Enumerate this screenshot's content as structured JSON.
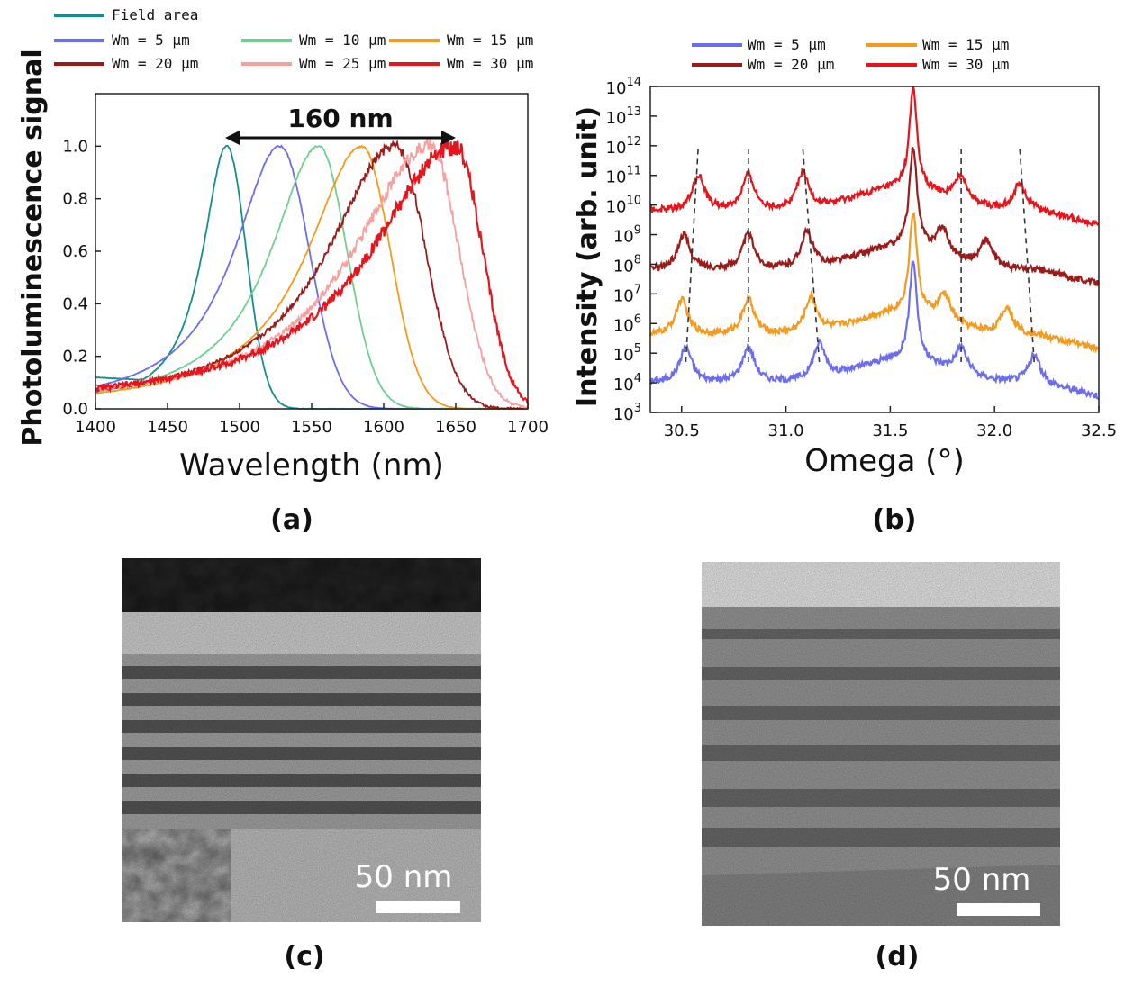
{
  "colors": {
    "field": "#138d8d",
    "wm5": "#6b6cf0",
    "wm10": "#6fcf8f",
    "wm15": "#f59a1c",
    "wm20": "#9b1b1b",
    "wm25": "#f7a0a0",
    "wm30": "#e8141c"
  },
  "chart_data": [
    {
      "type": "line",
      "panel": "(a)",
      "title": "",
      "xlabel": "Wavelength (nm)",
      "ylabel": "Photoluminescence signal",
      "xlim": [
        1400,
        1700
      ],
      "ylim": [
        0,
        1.2
      ],
      "xticks": [
        "1400",
        "1450",
        "1500",
        "1550",
        "1600",
        "1650",
        "1700"
      ],
      "yticks": [
        "0.0",
        "0.2",
        "0.4",
        "0.6",
        "0.8",
        "1.0"
      ],
      "annotation": "160 nm",
      "annotation_range": [
        1490,
        1650
      ],
      "legend_position": "top",
      "series": [
        {
          "name": "Field area",
          "color_key": "field",
          "peak": 1491,
          "left_width": 22,
          "right_width": 16,
          "start_level": 0.12
        },
        {
          "name": "Wm = 5 µm",
          "color_key": "wm5",
          "peak": 1528,
          "left_width": 42,
          "right_width": 24,
          "start_level": 0.09
        },
        {
          "name": "Wm = 10 µm",
          "color_key": "wm10",
          "peak": 1555,
          "left_width": 44,
          "right_width": 23,
          "start_level": 0.06
        },
        {
          "name": "Wm = 15 µm",
          "color_key": "wm15",
          "peak": 1585,
          "left_width": 50,
          "right_width": 23,
          "start_level": 0.05
        },
        {
          "name": "Wm = 20 µm",
          "color_key": "wm20",
          "peak": 1608,
          "left_width": 62,
          "right_width": 25,
          "start_level": 0.05
        },
        {
          "name": "Wm = 25 µm",
          "color_key": "wm25",
          "peak": 1632,
          "left_width": 70,
          "right_width": 24,
          "start_level": 0.04
        },
        {
          "name": "Wm = 30 µm",
          "color_key": "wm30",
          "peak": 1650,
          "left_width": 78,
          "right_width": 22,
          "start_level": 0.03
        }
      ]
    },
    {
      "type": "line",
      "panel": "(b)",
      "xlabel": "Omega (°)",
      "ylabel": "Intensity (arb. unit)",
      "xlim": [
        30.35,
        32.5
      ],
      "ylog_exponent_range": [
        3,
        14
      ],
      "xticks": [
        "30.5",
        "31.0",
        "31.5",
        "32.0",
        "32.5"
      ],
      "ytick_base": "10",
      "ytick_exponents": [
        "3",
        "4",
        "5",
        "6",
        "7",
        "8",
        "9",
        "10",
        "11",
        "12",
        "13",
        "14"
      ],
      "legend_position": "top",
      "series": [
        {
          "name": "Wm = 5 µm",
          "color_key": "wm5",
          "offset_log": 0,
          "peaks_deg": [
            30.52,
            30.82,
            31.16,
            31.61,
            31.84,
            32.19
          ]
        },
        {
          "name": "Wm = 15 µm",
          "color_key": "wm15",
          "offset_log": 1.6,
          "peaks_deg": [
            30.5,
            30.82,
            31.12,
            31.61,
            31.76,
            32.06
          ]
        },
        {
          "name": "Wm = 20 µm",
          "color_key": "wm20",
          "offset_log": 3.8,
          "peaks_deg": [
            30.51,
            30.82,
            31.1,
            31.61,
            31.75,
            31.96
          ]
        },
        {
          "name": "Wm = 30 µm",
          "color_key": "wm30",
          "offset_log": 5.8,
          "peaks_deg": [
            30.58,
            30.82,
            31.08,
            31.61,
            31.84,
            32.12
          ]
        }
      ]
    }
  ],
  "images": [
    {
      "panel": "(c)",
      "scale_label": "50 nm",
      "layers": 6
    },
    {
      "panel": "(d)",
      "scale_label": "50 nm",
      "layers": 6
    }
  ]
}
